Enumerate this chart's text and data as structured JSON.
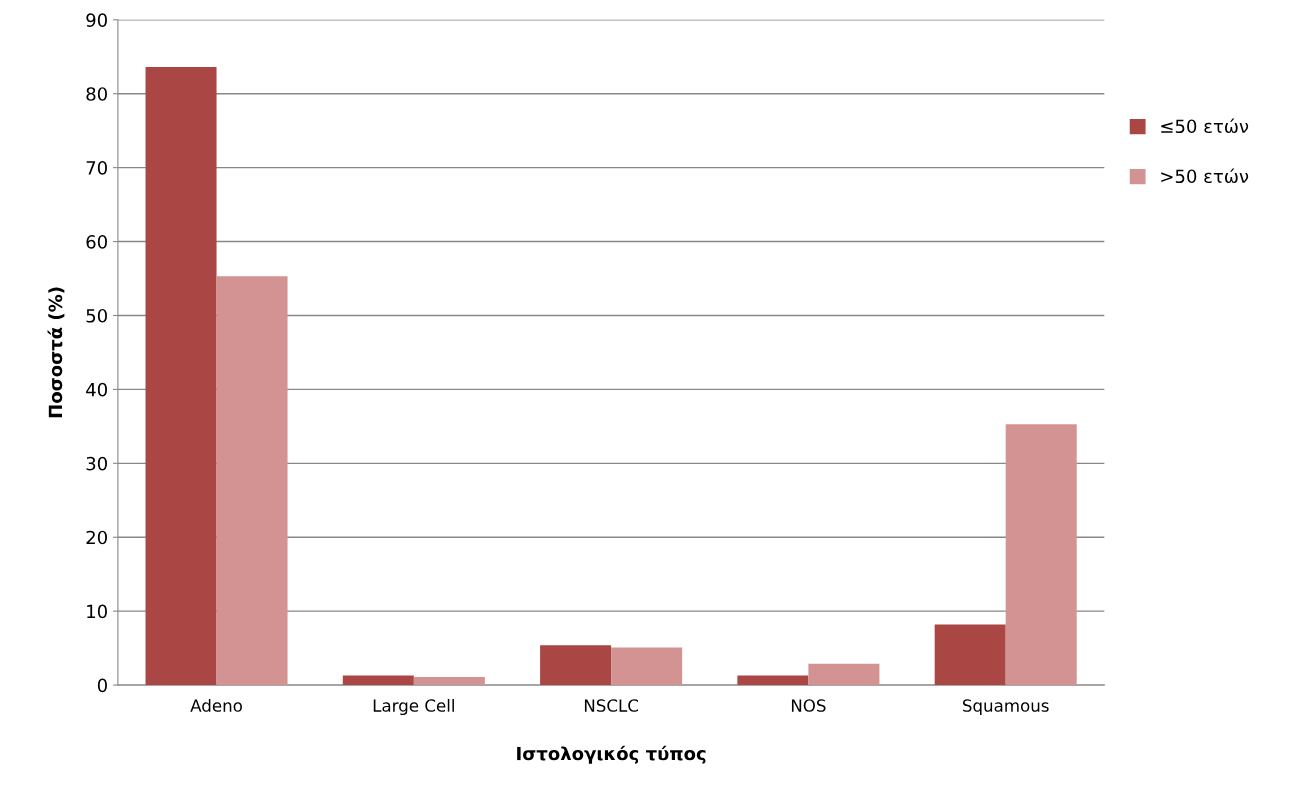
{
  "chart_data": {
    "type": "bar",
    "xlabel": "Ιστολογικός τύπος",
    "ylabel": "Ποσοστά (%)",
    "categories": [
      "Adeno",
      "Large Cell",
      "NSCLC",
      "NOS",
      "Squamous"
    ],
    "series": [
      {
        "name": "≤50 ετών",
        "color": "#aa4744",
        "values": [
          83.6,
          1.3,
          5.4,
          1.3,
          8.2
        ]
      },
      {
        "name": ">50 ετών",
        "color": "#d39392",
        "values": [
          55.3,
          1.1,
          5.1,
          2.9,
          35.3
        ]
      }
    ],
    "ylim": [
      0,
      90
    ],
    "yticks": [
      0,
      10,
      20,
      30,
      40,
      50,
      60,
      70,
      80,
      90
    ],
    "grid": "y",
    "legend": "right"
  }
}
